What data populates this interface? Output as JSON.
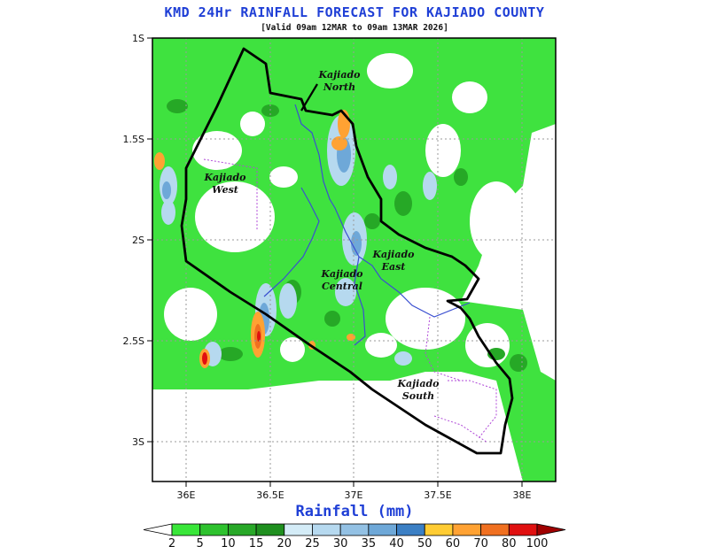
{
  "title": "KMD 24Hr RAINFALL FORECAST FOR KAJIADO COUNTY",
  "subtitle": "[Valid 09am 12MAR to 09am 13MAR 2026]",
  "axes": {
    "x_ticks": [
      "36E",
      "36.5E",
      "37E",
      "37.5E",
      "38E"
    ],
    "y_ticks": [
      "1S",
      "1.5S",
      "2S",
      "2.5S",
      "3S"
    ],
    "lon_range": [
      35.83,
      38.05
    ],
    "lat_range": [
      -1.0,
      -3.2
    ],
    "grid": "dotted"
  },
  "regions": [
    {
      "name_line1": "Kajiado",
      "name_line2": "North"
    },
    {
      "name_line1": "Kajiado",
      "name_line2": "West"
    },
    {
      "name_line1": "Kajiado",
      "name_line2": "East"
    },
    {
      "name_line1": "Kajiado",
      "name_line2": "Central"
    },
    {
      "name_line1": "Kajiado",
      "name_line2": "South"
    }
  ],
  "legend": {
    "title": "Rainfall (mm)",
    "levels": [
      "2",
      "5",
      "10",
      "15",
      "20",
      "25",
      "30",
      "35",
      "40",
      "50",
      "60",
      "70",
      "80",
      "100"
    ],
    "colors": [
      "#ffffff",
      "#39e639",
      "#2ec22e",
      "#28a828",
      "#1f8f1f",
      "#d4ecf7",
      "#b6d9ef",
      "#93c1e4",
      "#6ea8d8",
      "#3b7fc4",
      "#ffcc33",
      "#ffa233",
      "#f07020",
      "#e01010",
      "#a00000"
    ]
  }
}
